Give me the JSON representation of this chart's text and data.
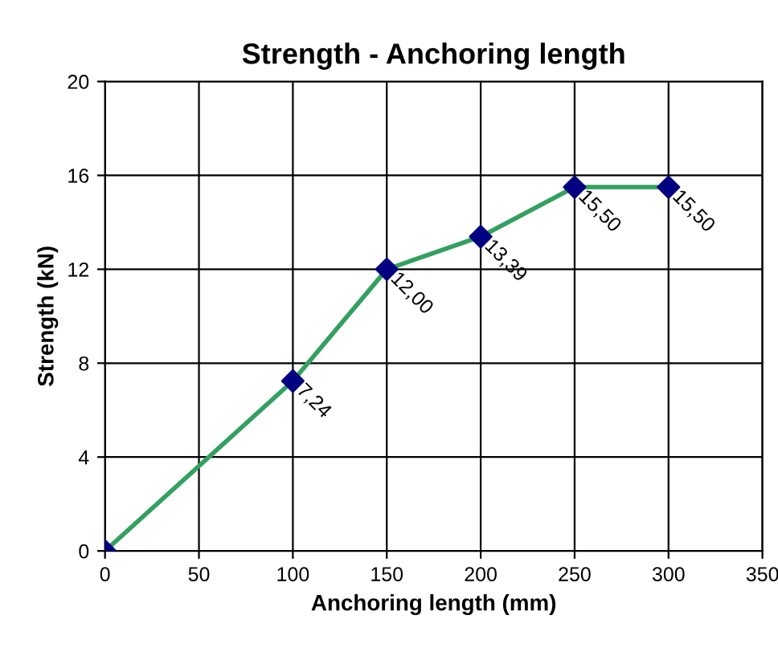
{
  "chart_data": {
    "type": "line",
    "title": "Strength - Anchoring length",
    "xlabel": "Anchoring length (mm)",
    "ylabel": "Strength (kN)",
    "x": [
      0,
      100,
      150,
      200,
      250,
      300
    ],
    "series": [
      {
        "color": "#33a060",
        "colors": [
          "#000080",
          "#000080",
          "#000080",
          "#000080",
          "#000080",
          "#000080"
        ],
        "values": [
          0,
          7.24,
          12.0,
          13.39,
          15.5,
          15.5
        ],
        "value_labels": [
          null,
          "7,24",
          "12,00",
          "13,39",
          "15,50",
          "15,50"
        ]
      }
    ],
    "xlim": [
      0,
      350
    ],
    "xticks": [
      0,
      50,
      100,
      150,
      200,
      250,
      300,
      350
    ],
    "ylim": [
      0,
      20
    ],
    "yticks": [
      0,
      4,
      8,
      12,
      16,
      20
    ],
    "grid": true,
    "marker": "diamond",
    "line_style": "solid"
  }
}
